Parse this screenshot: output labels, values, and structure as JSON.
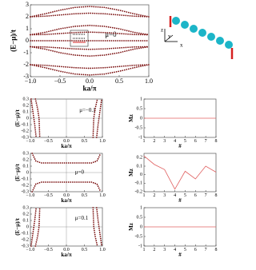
{
  "chart_data": [
    {
      "type": "line",
      "x_label": "ka/π",
      "y_label": "(E−μ)/t",
      "annotation": "μ=0",
      "color": "#7a1010",
      "style": "dotted",
      "zero_lines": false,
      "xlim": [
        -1,
        1
      ],
      "ylim": [
        -3,
        3
      ],
      "xticks": [
        {
          "value": -1,
          "label": "−1.0"
        },
        {
          "value": -0.5,
          "label": "−0.5"
        },
        {
          "value": 0,
          "label": "0.0"
        },
        {
          "value": 0.5,
          "label": "0.5"
        },
        {
          "value": 1,
          "label": "1.0"
        }
      ],
      "yticks": [
        -3,
        -2,
        -1,
        0,
        1,
        2,
        3
      ],
      "series": [
        {
          "x": [
            -1,
            -0.75,
            -0.5,
            -0.25,
            0,
            0.25,
            0.5,
            0.75,
            1
          ],
          "values": [
            2.0,
            2.25,
            2.55,
            2.78,
            2.86,
            2.78,
            2.55,
            2.25,
            2.0
          ]
        },
        {
          "x": [
            -1,
            -0.75,
            -0.5,
            -0.25,
            0,
            0.25,
            0.5,
            0.75,
            1
          ],
          "values": [
            2.0,
            2.05,
            2.15,
            2.25,
            2.3,
            2.25,
            2.15,
            2.05,
            2.0
          ]
        },
        {
          "x": [
            -1,
            -0.75,
            -0.5,
            -0.25,
            0,
            0.25,
            0.5,
            0.75,
            1
          ],
          "values": [
            0.5,
            0.7,
            1.0,
            1.2,
            1.28,
            1.2,
            1.0,
            0.7,
            0.5
          ]
        },
        {
          "x": [
            -1,
            -0.75,
            -0.5,
            -0.25,
            0,
            0.25,
            0.5,
            0.75,
            1
          ],
          "values": [
            0.5,
            0.52,
            0.6,
            0.68,
            0.72,
            0.68,
            0.6,
            0.52,
            0.5
          ]
        },
        {
          "x": [
            -1,
            -0.75,
            -0.5,
            -0.25,
            0,
            0.25,
            0.5,
            0.75,
            1
          ],
          "values": [
            0,
            0,
            0,
            0,
            0,
            0,
            0,
            0,
            0
          ]
        },
        {
          "x": [
            -1,
            -0.75,
            -0.5,
            -0.25,
            0,
            0.25,
            0.5,
            0.75,
            1
          ],
          "values": [
            -0.5,
            -0.52,
            -0.6,
            -0.68,
            -0.72,
            -0.68,
            -0.6,
            -0.52,
            -0.5
          ]
        },
        {
          "x": [
            -1,
            -0.75,
            -0.5,
            -0.25,
            0,
            0.25,
            0.5,
            0.75,
            1
          ],
          "values": [
            -0.5,
            -0.7,
            -1.0,
            -1.2,
            -1.28,
            -1.2,
            -1.0,
            -0.7,
            -0.5
          ]
        },
        {
          "x": [
            -1,
            -0.75,
            -0.5,
            -0.25,
            0,
            0.25,
            0.5,
            0.75,
            1
          ],
          "values": [
            -2.0,
            -2.05,
            -2.15,
            -2.25,
            -2.3,
            -2.25,
            -2.15,
            -2.05,
            -2.0
          ]
        },
        {
          "x": [
            -1,
            -0.75,
            -0.5,
            -0.25,
            0,
            0.25,
            0.5,
            0.75,
            1
          ],
          "values": [
            -2.0,
            -2.25,
            -2.55,
            -2.78,
            -2.86,
            -2.78,
            -2.55,
            -2.25,
            -2.0
          ]
        }
      ]
    },
    {
      "type": "line",
      "x_label": "ka/π",
      "y_label": "(E−μ)/t",
      "annotation": "μ=−0.1",
      "color": "#7a1010",
      "style": "dotted",
      "zero_lines": true,
      "xlim": [
        -1,
        1
      ],
      "ylim": [
        -0.3,
        0.3
      ],
      "xticks": [
        {
          "value": -1,
          "label": "−1.0"
        },
        {
          "value": -0.5,
          "label": "−0.5"
        },
        {
          "value": 0,
          "label": "0.0"
        },
        {
          "value": 0.5,
          "label": "0.5"
        },
        {
          "value": 1,
          "label": "1.0"
        }
      ],
      "yticks": [
        -0.3,
        -0.2,
        -0.1,
        0,
        0.1,
        0.2,
        0.3
      ],
      "series": [
        {
          "x": [
            -0.98,
            -0.93,
            -0.88,
            -0.84
          ],
          "values": [
            0.3,
            0.1,
            -0.1,
            -0.3
          ]
        },
        {
          "x": [
            -0.86,
            -0.8,
            -0.76,
            -0.74
          ],
          "values": [
            0.3,
            0.15,
            0.0,
            -0.3
          ]
        },
        {
          "x": [
            0.84,
            0.88,
            0.93,
            0.98
          ],
          "values": [
            -0.3,
            -0.1,
            0.1,
            0.3
          ]
        },
        {
          "x": [
            0.74,
            0.76,
            0.8,
            0.86
          ],
          "values": [
            -0.3,
            0.0,
            0.15,
            0.3
          ]
        }
      ]
    },
    {
      "type": "line",
      "x_label": "#",
      "y_label": "Mz",
      "color": "#e06060",
      "style": "solid",
      "zero_lines": false,
      "xlim": [
        1,
        8
      ],
      "ylim": [
        -1,
        1
      ],
      "xticks": [
        1,
        2,
        3,
        4,
        5,
        6,
        7,
        8
      ],
      "yticks": [
        -1,
        -0.5,
        0,
        0.5,
        1
      ],
      "series": [
        {
          "x": [
            1,
            2,
            3,
            4,
            5,
            6,
            7,
            8
          ],
          "values": [
            0,
            0,
            0,
            0,
            0,
            0,
            0,
            0
          ]
        }
      ]
    },
    {
      "type": "line",
      "x_label": "ka/π",
      "y_label": "(E−μ)/t",
      "annotation": "μ=0",
      "color": "#7a1010",
      "style": "dotted",
      "zero_lines": true,
      "xlim": [
        -1,
        1
      ],
      "ylim": [
        -0.3,
        0.3
      ],
      "xticks": [
        {
          "value": -1,
          "label": "−1.0"
        },
        {
          "value": -0.5,
          "label": "−0.5"
        },
        {
          "value": 0,
          "label": "0.0"
        },
        {
          "value": 0.5,
          "label": "0.5"
        },
        {
          "value": 1,
          "label": "1.0"
        }
      ],
      "yticks": [
        -0.3,
        -0.2,
        -0.1,
        0,
        0.1,
        0.2,
        0.3
      ],
      "series": [
        {
          "x": [
            -0.95,
            -0.85,
            -0.7,
            0,
            0.7,
            0.85,
            0.95
          ],
          "values": [
            0.3,
            0.18,
            0.15,
            0.15,
            0.15,
            0.18,
            0.3
          ]
        },
        {
          "x": [
            -0.95,
            -0.85,
            -0.7,
            0,
            0.7,
            0.85,
            0.95
          ],
          "values": [
            -0.3,
            -0.18,
            -0.15,
            -0.15,
            -0.15,
            -0.18,
            -0.3
          ]
        }
      ]
    },
    {
      "type": "line",
      "x_label": "#",
      "y_label": "Mz",
      "color": "#e06060",
      "style": "solid",
      "zero_lines": false,
      "xlim": [
        1,
        8
      ],
      "ylim": [
        -0.2,
        0.25
      ],
      "xticks": [
        1,
        2,
        3,
        4,
        5,
        6,
        7,
        8
      ],
      "yticks": [
        -0.2,
        -0.1,
        0,
        0.1,
        0.2
      ],
      "series": [
        {
          "x": [
            1,
            2,
            3,
            4,
            5,
            6,
            7,
            8
          ],
          "values": [
            0.22,
            0.12,
            0.06,
            -0.17,
            0.04,
            -0.05,
            0.1,
            0.03
          ]
        }
      ]
    },
    {
      "type": "line",
      "x_label": "ka/π",
      "y_label": "(E−μ)/t",
      "annotation": "μ=0.1",
      "color": "#7a1010",
      "style": "dotted",
      "zero_lines": true,
      "xlim": [
        -1,
        1
      ],
      "ylim": [
        -0.3,
        0.3
      ],
      "xticks": [
        {
          "value": -1,
          "label": "−1.0"
        },
        {
          "value": -0.5,
          "label": "−0.5"
        },
        {
          "value": 0,
          "label": "0.0"
        },
        {
          "value": 0.5,
          "label": "0.5"
        },
        {
          "value": 1,
          "label": "1.0"
        }
      ],
      "yticks": [
        -0.3,
        -0.2,
        -0.1,
        0,
        0.1,
        0.2,
        0.3
      ],
      "series": [
        {
          "x": [
            -0.98,
            -0.93,
            -0.88,
            -0.84
          ],
          "values": [
            -0.3,
            -0.1,
            0.1,
            0.3
          ]
        },
        {
          "x": [
            -0.86,
            -0.8,
            -0.76,
            -0.74
          ],
          "values": [
            -0.3,
            -0.15,
            0.0,
            0.3
          ]
        },
        {
          "x": [
            0.84,
            0.88,
            0.93,
            0.98
          ],
          "values": [
            0.3,
            0.1,
            -0.1,
            -0.3
          ]
        },
        {
          "x": [
            0.74,
            0.76,
            0.8,
            0.86
          ],
          "values": [
            0.3,
            0.0,
            -0.15,
            -0.3
          ]
        }
      ]
    },
    {
      "type": "line",
      "x_label": "#",
      "y_label": "Mz",
      "color": "#e06060",
      "style": "solid",
      "zero_lines": false,
      "xlim": [
        1,
        8
      ],
      "ylim": [
        -1,
        1
      ],
      "xticks": [
        1,
        2,
        3,
        4,
        5,
        6,
        7,
        8
      ],
      "yticks": [
        -1,
        -0.5,
        0,
        0.5,
        1
      ],
      "series": [
        {
          "x": [
            1,
            2,
            3,
            4,
            5,
            6,
            7,
            8
          ],
          "values": [
            0,
            0,
            0,
            0,
            0,
            0,
            0,
            0
          ]
        }
      ]
    }
  ],
  "diagram": {
    "axis_labels": [
      "z",
      "y",
      "x"
    ]
  }
}
